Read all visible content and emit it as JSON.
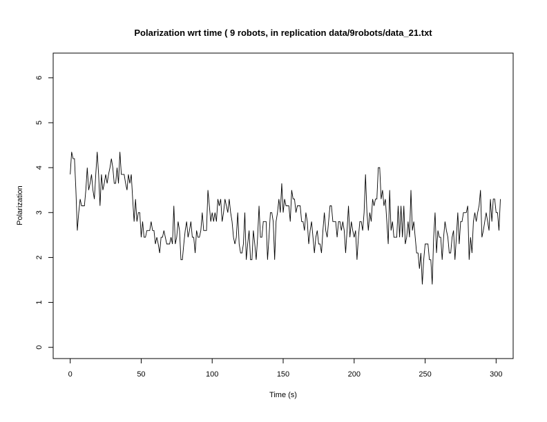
{
  "chart_data": {
    "type": "line",
    "title": "Polarization wrt time ( 9 robots, in replication  data/9robots/data_21.txt",
    "xlabel": "Time (s)",
    "ylabel": "Polarization",
    "xlim": [
      -12,
      312
    ],
    "ylim": [
      -0.25,
      6.55
    ],
    "xticks": [
      0,
      50,
      100,
      150,
      200,
      250,
      300
    ],
    "yticks": [
      0,
      1,
      2,
      3,
      4,
      5,
      6
    ],
    "grid": false,
    "legend": "none",
    "line_color": "#000000",
    "x_start": 0,
    "x_step": 1,
    "series": [
      {
        "values": [
          3.85,
          4.35,
          4.2,
          4.2,
          3.5,
          2.6,
          3.0,
          3.3,
          3.15,
          3.15,
          3.15,
          3.5,
          4.0,
          3.5,
          3.65,
          3.85,
          3.5,
          3.3,
          3.85,
          4.35,
          3.85,
          3.15,
          3.85,
          3.5,
          3.65,
          3.85,
          3.65,
          3.85,
          4.0,
          4.2,
          4.0,
          3.65,
          3.65,
          4.0,
          3.65,
          4.35,
          3.85,
          3.85,
          3.85,
          3.65,
          3.5,
          3.85,
          3.65,
          3.85,
          3.3,
          2.8,
          3.3,
          2.8,
          3.0,
          3.0,
          2.45,
          2.8,
          2.45,
          2.45,
          2.6,
          2.6,
          2.6,
          2.8,
          2.6,
          2.6,
          2.3,
          2.45,
          2.3,
          2.1,
          2.45,
          2.45,
          2.6,
          2.45,
          2.3,
          2.3,
          2.3,
          2.45,
          2.3,
          3.15,
          2.3,
          2.45,
          2.8,
          2.6,
          1.95,
          1.95,
          2.3,
          2.6,
          2.8,
          2.45,
          2.6,
          2.8,
          2.45,
          2.45,
          2.1,
          2.6,
          2.45,
          2.45,
          2.6,
          3.0,
          2.6,
          2.6,
          2.6,
          3.5,
          3.15,
          2.8,
          3.0,
          2.8,
          3.0,
          2.8,
          3.3,
          3.15,
          3.3,
          2.8,
          3.0,
          3.3,
          3.15,
          3.0,
          3.3,
          3.0,
          2.8,
          2.45,
          2.3,
          2.45,
          3.0,
          2.3,
          2.1,
          2.1,
          2.3,
          3.0,
          1.95,
          2.3,
          2.6,
          1.95,
          1.95,
          2.6,
          2.3,
          1.95,
          2.45,
          3.15,
          2.45,
          2.45,
          2.8,
          2.8,
          2.8,
          1.95,
          2.45,
          3.0,
          3.0,
          2.8,
          1.95,
          2.8,
          3.0,
          3.3,
          3.0,
          3.65,
          3.0,
          3.3,
          3.15,
          3.15,
          3.15,
          2.8,
          3.5,
          3.3,
          3.3,
          3.0,
          3.15,
          3.15,
          3.15,
          2.8,
          2.8,
          2.6,
          3.0,
          2.8,
          2.3,
          2.6,
          2.8,
          2.45,
          2.1,
          2.45,
          2.6,
          2.3,
          2.3,
          2.1,
          2.6,
          3.0,
          2.6,
          2.45,
          2.8,
          3.15,
          3.15,
          2.8,
          2.8,
          2.8,
          2.45,
          2.8,
          2.8,
          2.6,
          2.8,
          2.6,
          2.1,
          2.6,
          3.15,
          2.45,
          2.8,
          2.6,
          2.45,
          2.6,
          1.95,
          2.45,
          2.8,
          2.8,
          2.6,
          3.0,
          3.85,
          3.0,
          2.6,
          3.0,
          2.8,
          3.3,
          3.15,
          3.3,
          3.3,
          4.0,
          4.0,
          3.3,
          3.5,
          3.15,
          3.3,
          2.8,
          2.3,
          3.5,
          2.6,
          2.8,
          2.45,
          2.45,
          2.45,
          3.15,
          2.45,
          3.15,
          2.45,
          3.15,
          2.3,
          2.45,
          2.8,
          2.45,
          3.5,
          2.6,
          2.8,
          2.45,
          2.1,
          2.1,
          1.75,
          2.1,
          1.4,
          1.95,
          2.3,
          2.3,
          2.3,
          1.95,
          1.95,
          1.4,
          2.45,
          3.0,
          2.1,
          2.6,
          2.45,
          2.45,
          1.95,
          2.45,
          2.8,
          2.6,
          2.45,
          2.1,
          2.1,
          2.45,
          2.6,
          1.95,
          2.45,
          3.0,
          2.3,
          2.8,
          2.8,
          3.0,
          3.0,
          3.0,
          3.15,
          1.95,
          2.45,
          2.1,
          2.8,
          3.0,
          2.8,
          3.0,
          3.15,
          3.5,
          2.45,
          2.6,
          2.8,
          3.0,
          2.8,
          2.6,
          3.3,
          2.8,
          3.3,
          3.3,
          3.0,
          3.0,
          2.6,
          3.3
        ]
      }
    ]
  }
}
